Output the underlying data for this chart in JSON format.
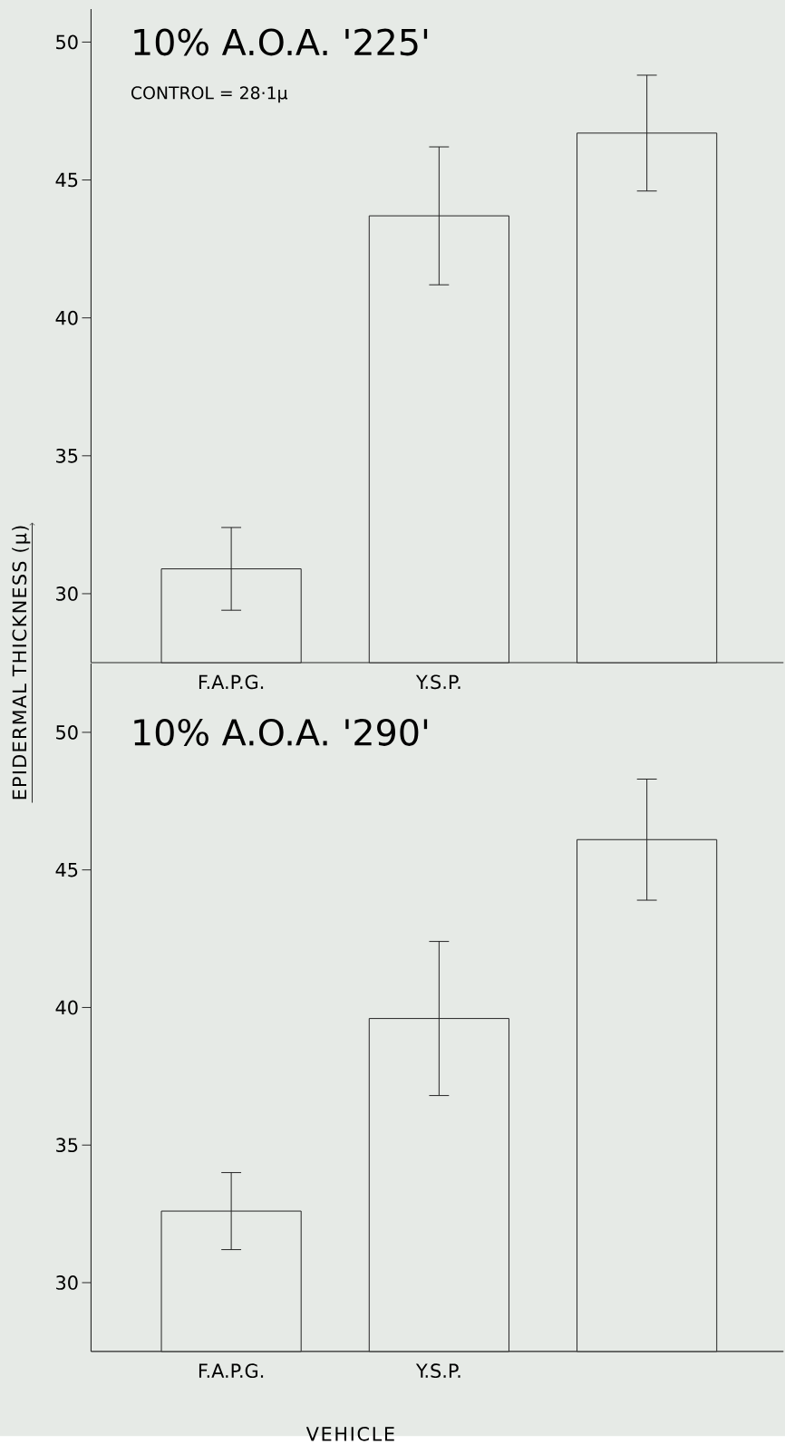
{
  "chart_data": [
    {
      "type": "bar",
      "title": "10% A.O.A. '225'",
      "ylabel": "EPIDERMAL THICKNESS (μ)",
      "annotations": [
        "CONTROL = 28·1μ"
      ],
      "categories": [
        "F.A.P.G.",
        "Y.S.P.",
        null
      ],
      "values": [
        30.9,
        43.7,
        46.7
      ],
      "errors": [
        1.5,
        2.5,
        2.1
      ],
      "color": "#222222",
      "ylim": [
        27.5,
        51.2
      ],
      "yticks": [
        30,
        35,
        40,
        45,
        50
      ]
    },
    {
      "type": "bar",
      "title": "10% A.O.A. '290'",
      "xlabel": "VEHICLE",
      "categories": [
        "F.A.P.G.",
        "Y.S.P.",
        null
      ],
      "values": [
        32.6,
        39.6,
        46.1
      ],
      "errors": [
        1.4,
        2.8,
        2.2
      ],
      "color": "#222222",
      "ylim": [
        27.5,
        52.5
      ],
      "yticks": [
        30,
        35,
        40,
        45,
        50
      ]
    }
  ]
}
